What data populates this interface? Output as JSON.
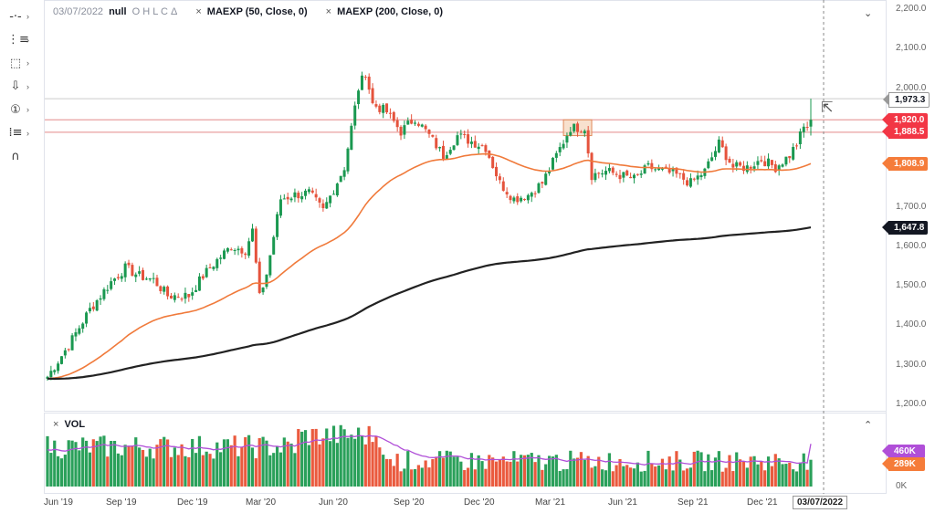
{
  "toolbar": {
    "tools": [
      {
        "name": "crosshair-tool-icon",
        "glyph": "-·-"
      },
      {
        "name": "trend-line-tool-icon",
        "glyph": "⋮≡"
      },
      {
        "name": "rectangle-tool-icon",
        "glyph": "⬚"
      },
      {
        "name": "arrow-down-tool-icon",
        "glyph": "⇩"
      },
      {
        "name": "number-marker-tool-icon",
        "glyph": "①"
      },
      {
        "name": "pattern-tool-icon",
        "glyph": "⁞≡"
      },
      {
        "name": "magnet-tool-icon",
        "glyph": "∩"
      }
    ]
  },
  "legend": {
    "date": "03/07/2022",
    "symbol": "null",
    "ohlc": "O H L C Δ",
    "ma1": "MAEXP (50, Close, 0)",
    "ma2": "MAEXP (200, Close, 0)",
    "close": "×"
  },
  "volume_legend": {
    "label": "VOL",
    "close": "×"
  },
  "colors": {
    "up": "#1a9850",
    "down": "#e5533c",
    "ma50": "#f07a3b",
    "ma200": "#222222",
    "hline": "#e8a0a0",
    "grey_line": "#cccccc",
    "vol_ma": "#b04fd8",
    "vol_up": "#2aa05a",
    "vol_down": "#ea5a3e"
  },
  "y_axis": {
    "ticks": [
      "2,200.0",
      "2,100.0",
      "2,000.0",
      "1,900.0",
      "1,800.0",
      "1,700.0",
      "1,600.0",
      "1,500.0",
      "1,400.0",
      "1,300.0",
      "1,200.0"
    ],
    "badges": [
      {
        "label": "1,973.3",
        "kind": "grey"
      },
      {
        "label": "1,920.0",
        "kind": "red"
      },
      {
        "label": "1,888.5",
        "kind": "red"
      },
      {
        "label": "1,808.9",
        "kind": "orange"
      },
      {
        "label": "1,647.8",
        "kind": "black"
      }
    ]
  },
  "volume_axis": {
    "badges": [
      {
        "label": "460K",
        "kind": "purple"
      },
      {
        "label": "289K",
        "kind": "orange"
      }
    ],
    "zero": "0K"
  },
  "x_axis": {
    "ticks": [
      "Jun '19",
      "Sep '19",
      "Dec '19",
      "Mar '20",
      "Jun '20",
      "Sep '20",
      "Dec '20",
      "Mar '21",
      "Jun '21",
      "Sep '21",
      "Dec '21"
    ],
    "highlight": "03/07/2022"
  },
  "chart_data": {
    "type": "candlestick",
    "ylim": [
      1200,
      2200
    ],
    "horizontal_lines": [
      1973.3,
      1920.0,
      1888.5
    ],
    "anchors": [
      {
        "x": 0,
        "c": 1270
      },
      {
        "x": 6,
        "c": 1350
      },
      {
        "x": 12,
        "c": 1440
      },
      {
        "x": 18,
        "c": 1510
      },
      {
        "x": 22,
        "c": 1545
      },
      {
        "x": 26,
        "c": 1525
      },
      {
        "x": 30,
        "c": 1515
      },
      {
        "x": 34,
        "c": 1475
      },
      {
        "x": 40,
        "c": 1475
      },
      {
        "x": 44,
        "c": 1525
      },
      {
        "x": 48,
        "c": 1565
      },
      {
        "x": 52,
        "c": 1600
      },
      {
        "x": 56,
        "c": 1590
      },
      {
        "x": 58,
        "c": 1640
      },
      {
        "x": 60,
        "c": 1470
      },
      {
        "x": 62,
        "c": 1530
      },
      {
        "x": 66,
        "c": 1720
      },
      {
        "x": 70,
        "c": 1730
      },
      {
        "x": 74,
        "c": 1735
      },
      {
        "x": 78,
        "c": 1690
      },
      {
        "x": 84,
        "c": 1800
      },
      {
        "x": 86,
        "c": 1900
      },
      {
        "x": 88,
        "c": 2000
      },
      {
        "x": 90,
        "c": 2040
      },
      {
        "x": 92,
        "c": 1960
      },
      {
        "x": 96,
        "c": 1940
      },
      {
        "x": 100,
        "c": 1890
      },
      {
        "x": 104,
        "c": 1925
      },
      {
        "x": 108,
        "c": 1880
      },
      {
        "x": 112,
        "c": 1830
      },
      {
        "x": 116,
        "c": 1880
      },
      {
        "x": 120,
        "c": 1865
      },
      {
        "x": 124,
        "c": 1850
      },
      {
        "x": 128,
        "c": 1760
      },
      {
        "x": 132,
        "c": 1720
      },
      {
        "x": 136,
        "c": 1730
      },
      {
        "x": 140,
        "c": 1760
      },
      {
        "x": 144,
        "c": 1830
      },
      {
        "x": 148,
        "c": 1900
      },
      {
        "x": 152,
        "c": 1900
      },
      {
        "x": 154,
        "c": 1780
      },
      {
        "x": 158,
        "c": 1790
      },
      {
        "x": 162,
        "c": 1780
      },
      {
        "x": 166,
        "c": 1770
      },
      {
        "x": 170,
        "c": 1800
      },
      {
        "x": 174,
        "c": 1790
      },
      {
        "x": 178,
        "c": 1780
      },
      {
        "x": 182,
        "c": 1760
      },
      {
        "x": 186,
        "c": 1790
      },
      {
        "x": 190,
        "c": 1860
      },
      {
        "x": 194,
        "c": 1800
      },
      {
        "x": 198,
        "c": 1800
      },
      {
        "x": 202,
        "c": 1820
      },
      {
        "x": 206,
        "c": 1800
      },
      {
        "x": 210,
        "c": 1830
      },
      {
        "x": 212,
        "c": 1860
      },
      {
        "x": 214,
        "c": 1900
      },
      {
        "x": 216,
        "c": 1920
      }
    ],
    "count": 217,
    "series": [
      {
        "name": "MAEXP (50, Close, 0)",
        "type": "line",
        "last": 1808.9
      },
      {
        "name": "MAEXP (200, Close, 0)",
        "type": "line",
        "last": 1647.8
      }
    ],
    "volume": {
      "name": "VOL",
      "last": 289000,
      "ma_last": 460000
    }
  }
}
